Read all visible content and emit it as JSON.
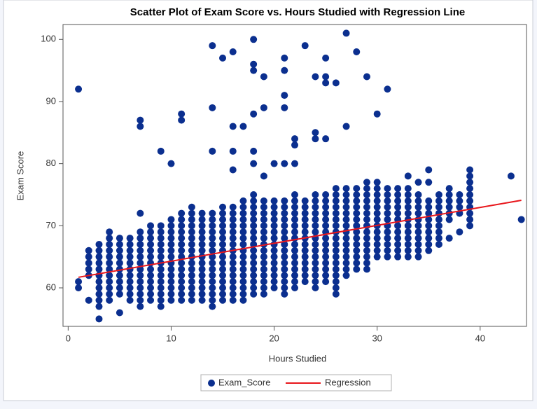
{
  "chart_data": {
    "type": "scatter",
    "title": "Scatter Plot of Exam Score vs. Hours Studied with Regression Line",
    "x_label": "Hours Studied",
    "y_label": "Exam Score",
    "xlim": [
      -0.5,
      44.5
    ],
    "xticks": [
      0,
      10,
      20,
      30,
      40
    ],
    "ylim": [
      53.8,
      102.4
    ],
    "yticks": [
      60,
      70,
      80,
      90,
      100
    ],
    "legend": "bottom",
    "series": [
      {
        "name": "Exam_Score",
        "type": "scatter",
        "color": "#0b2f8f",
        "x": [
          1,
          1,
          1,
          2,
          2,
          2,
          2,
          2,
          2,
          3,
          3,
          3,
          3,
          3,
          3,
          3,
          3,
          3,
          3,
          3,
          3,
          4,
          4,
          4,
          4,
          4,
          4,
          4,
          4,
          4,
          4,
          4,
          4,
          5,
          5,
          5,
          5,
          5,
          5,
          5,
          5,
          5,
          5,
          5,
          6,
          6,
          6,
          6,
          6,
          6,
          6,
          6,
          6,
          6,
          6,
          7,
          7,
          7,
          7,
          7,
          7,
          7,
          7,
          7,
          7,
          7,
          7,
          7,
          7,
          7,
          7,
          8,
          8,
          8,
          8,
          8,
          8,
          8,
          8,
          8,
          8,
          8,
          8,
          8,
          9,
          9,
          9,
          9,
          9,
          9,
          9,
          9,
          9,
          9,
          9,
          9,
          9,
          9,
          9,
          10,
          10,
          10,
          10,
          10,
          10,
          10,
          10,
          10,
          10,
          10,
          10,
          10,
          10,
          10,
          11,
          11,
          11,
          11,
          11,
          11,
          11,
          11,
          11,
          11,
          11,
          11,
          11,
          11,
          11,
          11,
          11,
          12,
          12,
          12,
          12,
          12,
          12,
          12,
          12,
          12,
          12,
          12,
          12,
          12,
          12,
          12,
          12,
          13,
          13,
          13,
          13,
          13,
          13,
          13,
          13,
          13,
          13,
          13,
          13,
          13,
          13,
          13,
          14,
          14,
          14,
          14,
          14,
          14,
          14,
          14,
          14,
          14,
          14,
          14,
          14,
          14,
          14,
          14,
          14,
          14,
          14,
          15,
          15,
          15,
          15,
          15,
          15,
          15,
          15,
          15,
          15,
          15,
          15,
          15,
          15,
          15,
          15,
          15,
          16,
          16,
          16,
          16,
          16,
          16,
          16,
          16,
          16,
          16,
          16,
          16,
          16,
          16,
          16,
          16,
          16,
          16,
          16,
          16,
          17,
          17,
          17,
          17,
          17,
          17,
          17,
          17,
          17,
          17,
          17,
          17,
          17,
          17,
          17,
          17,
          17,
          17,
          18,
          18,
          18,
          18,
          18,
          18,
          18,
          18,
          18,
          18,
          18,
          18,
          18,
          18,
          18,
          18,
          18,
          18,
          18,
          18,
          18,
          18,
          18,
          19,
          19,
          19,
          19,
          19,
          19,
          19,
          19,
          19,
          19,
          19,
          19,
          19,
          19,
          19,
          19,
          19,
          19,
          19,
          20,
          20,
          20,
          20,
          20,
          20,
          20,
          20,
          20,
          20,
          20,
          20,
          20,
          20,
          20,
          20,
          21,
          21,
          21,
          21,
          21,
          21,
          21,
          21,
          21,
          21,
          21,
          21,
          21,
          21,
          21,
          21,
          21,
          21,
          21,
          21,
          21,
          22,
          22,
          22,
          22,
          22,
          22,
          22,
          22,
          22,
          22,
          22,
          22,
          22,
          22,
          22,
          22,
          22,
          22,
          22,
          23,
          23,
          23,
          23,
          23,
          23,
          23,
          23,
          23,
          23,
          23,
          23,
          23,
          23,
          23,
          24,
          24,
          24,
          24,
          24,
          24,
          24,
          24,
          24,
          24,
          24,
          24,
          24,
          24,
          24,
          24,
          24,
          24,
          24,
          25,
          25,
          25,
          25,
          25,
          25,
          25,
          25,
          25,
          25,
          25,
          25,
          25,
          25,
          25,
          25,
          25,
          25,
          25,
          26,
          26,
          26,
          26,
          26,
          26,
          26,
          26,
          26,
          26,
          26,
          26,
          26,
          26,
          26,
          26,
          26,
          26,
          26,
          27,
          27,
          27,
          27,
          27,
          27,
          27,
          27,
          27,
          27,
          27,
          27,
          27,
          27,
          27,
          27,
          27,
          28,
          28,
          28,
          28,
          28,
          28,
          28,
          28,
          28,
          28,
          28,
          28,
          28,
          28,
          28,
          29,
          29,
          29,
          29,
          29,
          29,
          29,
          29,
          29,
          29,
          29,
          29,
          29,
          29,
          29,
          29,
          30,
          30,
          30,
          30,
          30,
          30,
          30,
          30,
          30,
          30,
          30,
          30,
          30,
          30,
          31,
          31,
          31,
          31,
          31,
          31,
          31,
          31,
          31,
          31,
          31,
          31,
          31,
          32,
          32,
          32,
          32,
          32,
          32,
          32,
          32,
          32,
          32,
          32,
          32,
          33,
          33,
          33,
          33,
          33,
          33,
          33,
          33,
          33,
          33,
          33,
          33,
          33,
          34,
          34,
          34,
          34,
          34,
          34,
          34,
          34,
          34,
          34,
          34,
          34,
          35,
          35,
          35,
          35,
          35,
          35,
          35,
          35,
          35,
          35,
          35,
          36,
          36,
          36,
          36,
          36,
          36,
          36,
          36,
          36,
          37,
          37,
          37,
          37,
          37,
          37,
          37,
          38,
          38,
          38,
          38,
          38,
          39,
          39,
          39,
          39,
          39,
          39,
          39,
          39,
          39,
          39,
          43,
          44
        ],
        "values": [
          60,
          61,
          92,
          58,
          62,
          63,
          64,
          65,
          66,
          55,
          57,
          58,
          59,
          60,
          61,
          62,
          63,
          64,
          65,
          66,
          67,
          58,
          59,
          60,
          61,
          62,
          63,
          64,
          65,
          66,
          67,
          68,
          69,
          56,
          59,
          60,
          61,
          62,
          63,
          64,
          65,
          66,
          67,
          68,
          58,
          59,
          60,
          61,
          62,
          63,
          64,
          65,
          66,
          67,
          68,
          57,
          58,
          59,
          60,
          61,
          62,
          63,
          64,
          65,
          66,
          67,
          68,
          69,
          72,
          86,
          87,
          58,
          59,
          60,
          61,
          62,
          63,
          64,
          65,
          66,
          67,
          68,
          69,
          70,
          57,
          58,
          59,
          60,
          61,
          62,
          63,
          64,
          65,
          66,
          67,
          68,
          69,
          70,
          82,
          58,
          59,
          60,
          61,
          62,
          63,
          64,
          65,
          66,
          67,
          68,
          69,
          70,
          71,
          80,
          58,
          59,
          60,
          61,
          62,
          63,
          64,
          65,
          66,
          67,
          68,
          69,
          70,
          71,
          72,
          87,
          88,
          58,
          59,
          60,
          61,
          62,
          63,
          64,
          65,
          66,
          67,
          68,
          69,
          70,
          71,
          72,
          73,
          58,
          59,
          60,
          61,
          62,
          63,
          64,
          65,
          66,
          67,
          68,
          69,
          70,
          71,
          72,
          57,
          58,
          59,
          60,
          61,
          62,
          63,
          64,
          65,
          66,
          67,
          68,
          69,
          70,
          71,
          72,
          82,
          89,
          99,
          58,
          59,
          60,
          61,
          62,
          63,
          64,
          65,
          66,
          67,
          68,
          69,
          70,
          71,
          72,
          73,
          97,
          58,
          59,
          60,
          61,
          62,
          63,
          64,
          65,
          66,
          67,
          68,
          69,
          70,
          71,
          72,
          73,
          79,
          82,
          86,
          98,
          58,
          59,
          60,
          61,
          62,
          63,
          64,
          65,
          66,
          67,
          68,
          69,
          70,
          71,
          72,
          73,
          74,
          86,
          59,
          60,
          61,
          62,
          63,
          64,
          65,
          66,
          67,
          68,
          69,
          70,
          71,
          72,
          73,
          74,
          75,
          80,
          82,
          88,
          95,
          96,
          100,
          59,
          60,
          61,
          62,
          63,
          64,
          65,
          66,
          67,
          68,
          69,
          70,
          71,
          72,
          73,
          74,
          78,
          89,
          94,
          60,
          61,
          62,
          63,
          64,
          65,
          66,
          67,
          68,
          69,
          70,
          71,
          72,
          73,
          74,
          80,
          59,
          60,
          61,
          62,
          63,
          64,
          65,
          66,
          67,
          68,
          69,
          70,
          71,
          72,
          73,
          74,
          80,
          89,
          91,
          95,
          97,
          60,
          61,
          62,
          63,
          64,
          65,
          66,
          67,
          68,
          69,
          70,
          71,
          72,
          73,
          74,
          75,
          80,
          83,
          84,
          61,
          62,
          63,
          64,
          65,
          66,
          67,
          68,
          69,
          70,
          71,
          72,
          73,
          74,
          99,
          60,
          61,
          62,
          63,
          64,
          65,
          66,
          67,
          68,
          69,
          70,
          71,
          72,
          73,
          74,
          75,
          84,
          85,
          94,
          61,
          62,
          63,
          64,
          65,
          66,
          67,
          68,
          69,
          70,
          71,
          72,
          73,
          74,
          75,
          84,
          93,
          94,
          97,
          59,
          60,
          61,
          62,
          63,
          64,
          65,
          66,
          67,
          68,
          69,
          70,
          71,
          72,
          73,
          74,
          75,
          76,
          93,
          62,
          63,
          64,
          65,
          66,
          67,
          68,
          69,
          70,
          71,
          72,
          73,
          74,
          75,
          76,
          86,
          101,
          63,
          64,
          65,
          66,
          67,
          68,
          69,
          70,
          71,
          72,
          73,
          74,
          75,
          76,
          98,
          63,
          64,
          65,
          66,
          67,
          68,
          69,
          70,
          71,
          72,
          73,
          74,
          75,
          76,
          77,
          94,
          65,
          66,
          67,
          68,
          69,
          70,
          71,
          72,
          73,
          74,
          75,
          76,
          77,
          88,
          65,
          66,
          67,
          68,
          69,
          70,
          71,
          72,
          73,
          74,
          75,
          76,
          92,
          65,
          66,
          67,
          68,
          69,
          70,
          71,
          72,
          73,
          74,
          75,
          76,
          65,
          66,
          67,
          68,
          69,
          70,
          71,
          72,
          73,
          74,
          75,
          76,
          78,
          65,
          66,
          67,
          68,
          69,
          70,
          71,
          72,
          73,
          74,
          75,
          77,
          66,
          67,
          68,
          69,
          70,
          71,
          72,
          73,
          74,
          77,
          79,
          67,
          68,
          69,
          70,
          71,
          72,
          73,
          74,
          75,
          68,
          71,
          72,
          73,
          74,
          75,
          76,
          69,
          72,
          73,
          74,
          75,
          70,
          71,
          72,
          73,
          74,
          75,
          76,
          77,
          78,
          79,
          78,
          71
        ]
      },
      {
        "name": "Regression",
        "type": "line",
        "color": "#e8161b",
        "x": [
          1,
          44
        ],
        "values": [
          61.7,
          74.1
        ]
      }
    ]
  }
}
